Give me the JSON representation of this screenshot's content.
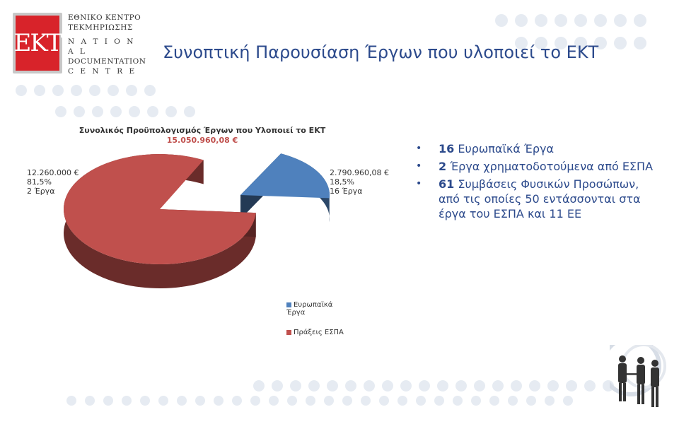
{
  "logo": {
    "mark": "EKT",
    "greek_line1": "ΕΘΝΙΚΟ ΚΕΝΤΡΟ",
    "greek_line2": "ΤΕΚΜΗΡΙΩΣΗΣ",
    "english_line1": "N A T I O N A L",
    "english_line2": "DOCUMENTATION",
    "english_line3": "C E N T R E"
  },
  "slide_title": "Συνοπτική Παρουσίαση Έργων που υλοποιεί το ΕΚΤ",
  "chart_data": {
    "type": "pie",
    "title": "Συνολικός Προϋπολογισμός Έργων που Υλοποιεί το ΕΚΤ",
    "subtitle": "15.050.960,08 €",
    "categories": [
      "Ευρωπαϊκά Έργα",
      "Πράξεις ΕΣΠΑ"
    ],
    "values": [
      2790960.08,
      12260000
    ],
    "percent": [
      18.5,
      81.5
    ],
    "data_labels": [
      {
        "amount": "2.790.960,08 €",
        "percent": "18,5%",
        "count": "16 Έργα"
      },
      {
        "amount": "12.260.000 €",
        "percent": "81,5%",
        "count": "2 Έργα"
      }
    ],
    "colors": [
      "#4f81bd",
      "#c0504d"
    ],
    "legend": [
      "Ευρωπαϊκά Έργα",
      "Πράξεις ΕΣΠΑ"
    ],
    "legend_position": "bottom-right"
  },
  "bullets": [
    {
      "num": "16",
      "text": " Ευρωπαϊκά Έργα"
    },
    {
      "num": "2",
      "text": " Έργα χρηματοδοτούμενα από ΕΣΠΑ"
    },
    {
      "num": "61",
      "text": " Συμβάσεις Φυσικών Προσώπων, από τις οποίες 50 εντάσσονται στα έργα του ΕΣΠΑ και 11 ΕΕ"
    }
  ],
  "colors": {
    "title": "#2c4a8c",
    "dots": "#e6ebf2",
    "logo_red": "#d8232a"
  }
}
